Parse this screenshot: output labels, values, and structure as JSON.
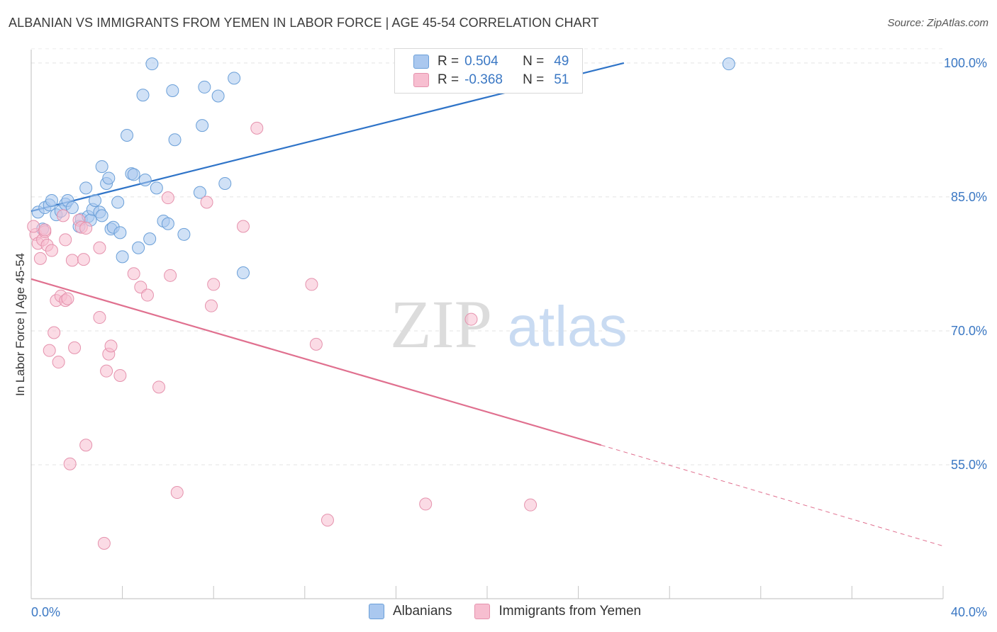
{
  "title": "ALBANIAN VS IMMIGRANTS FROM YEMEN IN LABOR FORCE | AGE 45-54 CORRELATION CHART",
  "source": "Source: ZipAtlas.com",
  "watermark": {
    "zip": "ZIP",
    "atlas": "atlas"
  },
  "legend_stats": [
    {
      "r_label": "R =",
      "r_value": "0.504",
      "n_label": "N =",
      "n_value": "49",
      "color": "#aac8ef"
    },
    {
      "r_label": "R =",
      "r_value": "-0.368",
      "n_label": "N =",
      "n_value": "51",
      "color": "#f7bed0"
    }
  ],
  "bottom_legend": [
    {
      "label": "Albanians",
      "color": "#aac8ef"
    },
    {
      "label": "Immigrants from Yemen",
      "color": "#f7bed0"
    }
  ],
  "chart_data": {
    "type": "scatter",
    "xlabel": "",
    "ylabel": "In Labor Force | Age 45-54",
    "xlim": [
      0.0,
      40.0
    ],
    "ylim": [
      40.0,
      101.5
    ],
    "x_tick_labels": [
      "0.0%",
      "40.0%"
    ],
    "y_ticks": [
      55.0,
      70.0,
      85.0,
      100.0
    ],
    "y_tick_labels": [
      "55.0%",
      "70.0%",
      "85.0%",
      "100.0%"
    ],
    "grid": true,
    "series": [
      {
        "name": "Albanians",
        "color": "#aac8ef",
        "edge": "#6a9fd8",
        "trend": {
          "x0": 0.0,
          "y0": 83.4,
          "x1": 26.0,
          "y1": 100.0,
          "color": "#2f74c8"
        },
        "points": [
          [
            0.3,
            83.3
          ],
          [
            0.5,
            81.4
          ],
          [
            0.6,
            83.8
          ],
          [
            0.8,
            84.1
          ],
          [
            0.9,
            84.6
          ],
          [
            1.1,
            83.0
          ],
          [
            1.3,
            83.4
          ],
          [
            1.5,
            84.2
          ],
          [
            1.6,
            84.6
          ],
          [
            1.8,
            83.8
          ],
          [
            2.1,
            81.7
          ],
          [
            2.2,
            82.5
          ],
          [
            2.4,
            86.0
          ],
          [
            2.5,
            82.8
          ],
          [
            2.6,
            82.4
          ],
          [
            2.7,
            83.6
          ],
          [
            2.8,
            84.6
          ],
          [
            3.0,
            83.3
          ],
          [
            3.1,
            82.9
          ],
          [
            3.1,
            88.4
          ],
          [
            3.3,
            86.5
          ],
          [
            3.4,
            87.1
          ],
          [
            3.5,
            81.4
          ],
          [
            3.6,
            81.6
          ],
          [
            3.8,
            84.4
          ],
          [
            3.9,
            81.0
          ],
          [
            4.0,
            78.3
          ],
          [
            4.2,
            91.9
          ],
          [
            4.4,
            87.6
          ],
          [
            4.5,
            87.5
          ],
          [
            4.7,
            79.3
          ],
          [
            4.9,
            96.4
          ],
          [
            5.0,
            86.9
          ],
          [
            5.2,
            80.3
          ],
          [
            5.3,
            99.9
          ],
          [
            5.5,
            86.0
          ],
          [
            5.8,
            82.3
          ],
          [
            6.0,
            82.0
          ],
          [
            6.2,
            96.9
          ],
          [
            6.3,
            91.4
          ],
          [
            6.7,
            80.8
          ],
          [
            7.4,
            85.5
          ],
          [
            7.5,
            93.0
          ],
          [
            7.6,
            97.3
          ],
          [
            8.2,
            96.3
          ],
          [
            8.5,
            86.5
          ],
          [
            8.9,
            98.3
          ],
          [
            9.3,
            76.5
          ],
          [
            30.6,
            99.9
          ]
        ]
      },
      {
        "name": "Immigrants from Yemen",
        "color": "#f7bed0",
        "edge": "#e592ad",
        "trend": {
          "x0": 0.0,
          "y0": 75.8,
          "x1": 25.0,
          "y1": 57.2,
          "dash_x1": 40.0,
          "dash_y1": 45.9,
          "color": "#e0708f"
        },
        "points": [
          [
            0.2,
            80.8
          ],
          [
            0.3,
            79.8
          ],
          [
            0.4,
            78.1
          ],
          [
            0.5,
            80.2
          ],
          [
            0.6,
            81.1
          ],
          [
            0.7,
            79.6
          ],
          [
            0.8,
            67.8
          ],
          [
            0.9,
            79.0
          ],
          [
            1.0,
            69.8
          ],
          [
            1.1,
            73.4
          ],
          [
            1.2,
            66.5
          ],
          [
            1.3,
            73.9
          ],
          [
            1.4,
            82.9
          ],
          [
            1.5,
            73.4
          ],
          [
            1.5,
            80.2
          ],
          [
            1.6,
            73.6
          ],
          [
            1.7,
            55.1
          ],
          [
            1.8,
            77.9
          ],
          [
            1.9,
            68.1
          ],
          [
            2.1,
            82.4
          ],
          [
            2.2,
            81.6
          ],
          [
            2.3,
            78.0
          ],
          [
            2.4,
            81.5
          ],
          [
            2.4,
            57.2
          ],
          [
            3.0,
            71.5
          ],
          [
            3.0,
            79.3
          ],
          [
            3.2,
            46.2
          ],
          [
            3.3,
            65.5
          ],
          [
            3.4,
            67.4
          ],
          [
            3.5,
            68.3
          ],
          [
            3.9,
            65.0
          ],
          [
            4.5,
            76.4
          ],
          [
            4.8,
            74.9
          ],
          [
            5.1,
            74.0
          ],
          [
            5.6,
            63.7
          ],
          [
            6.0,
            84.9
          ],
          [
            6.1,
            76.2
          ],
          [
            6.4,
            51.9
          ],
          [
            7.7,
            84.4
          ],
          [
            7.9,
            72.8
          ],
          [
            8.0,
            75.2
          ],
          [
            9.3,
            81.7
          ],
          [
            9.9,
            92.7
          ],
          [
            12.3,
            75.2
          ],
          [
            12.5,
            68.5
          ],
          [
            13.0,
            48.8
          ],
          [
            17.3,
            50.6
          ],
          [
            19.3,
            71.3
          ],
          [
            21.9,
            50.5
          ],
          [
            0.1,
            81.7
          ],
          [
            0.6,
            81.3
          ]
        ]
      }
    ]
  }
}
